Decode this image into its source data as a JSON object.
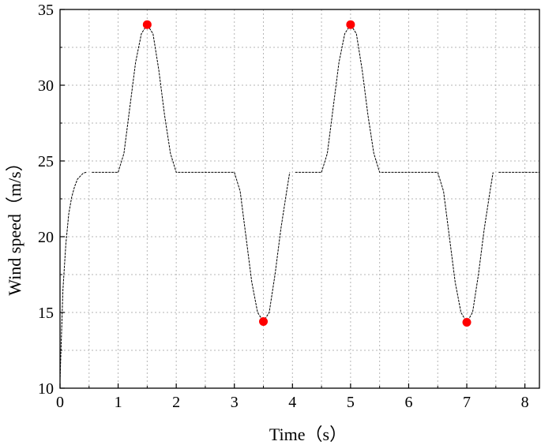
{
  "chart_data": {
    "type": "line",
    "title": "",
    "xlabel": "Time（s）",
    "ylabel": "Wind speed（m/s）",
    "xlim": [
      0,
      8.25
    ],
    "ylim": [
      10,
      35
    ],
    "x_ticks": [
      "0",
      "1",
      "2",
      "3",
      "4",
      "5",
      "6",
      "7",
      "8"
    ],
    "y_ticks": [
      "10",
      "15",
      "20",
      "25",
      "30",
      "35"
    ],
    "grid": true,
    "line_color": "#000000",
    "marker_color": "#ff0000",
    "series": [
      {
        "x": [
          0,
          0.05,
          0.1,
          0.15,
          0.2,
          0.25,
          0.3,
          0.35,
          0.4,
          0.45,
          0.5,
          1.0,
          1.1,
          1.2,
          1.3,
          1.4,
          1.5,
          1.6,
          1.7,
          1.8,
          1.9,
          2.0,
          3.0,
          3.1,
          3.2,
          3.3,
          3.4,
          3.5,
          3.6,
          3.7,
          3.8,
          3.9,
          4.0,
          4.5,
          4.6,
          4.7,
          4.8,
          4.9,
          5.0,
          5.1,
          5.2,
          5.3,
          5.4,
          5.5,
          6.5,
          6.6,
          6.7,
          6.8,
          6.9,
          7.0,
          7.1,
          7.2,
          7.3,
          7.4,
          7.5,
          8.25
        ],
        "y": [
          10.5,
          16.5,
          19.5,
          21.5,
          22.6,
          23.3,
          23.8,
          24.0,
          24.2,
          24.25,
          24.25,
          24.25,
          25.5,
          28.5,
          31.5,
          33.4,
          34.0,
          33.4,
          31.0,
          28.0,
          25.5,
          24.25,
          24.25,
          23.0,
          20.0,
          17.0,
          15.0,
          14.4,
          15.0,
          17.5,
          20.5,
          23.0,
          24.25,
          24.25,
          25.5,
          28.5,
          31.5,
          33.4,
          34.0,
          33.4,
          31.0,
          28.0,
          25.5,
          24.25,
          24.25,
          23.0,
          20.0,
          17.0,
          15.0,
          14.35,
          15.0,
          17.5,
          20.5,
          23.0,
          24.25,
          24.25
        ],
        "gaps_after_x": [
          0.5,
          1.0,
          4.0,
          4.5,
          7.5
        ]
      }
    ],
    "markers": [
      {
        "x": 1.5,
        "y": 34.0
      },
      {
        "x": 3.5,
        "y": 14.4
      },
      {
        "x": 5.0,
        "y": 34.0
      },
      {
        "x": 7.0,
        "y": 14.35
      }
    ]
  }
}
